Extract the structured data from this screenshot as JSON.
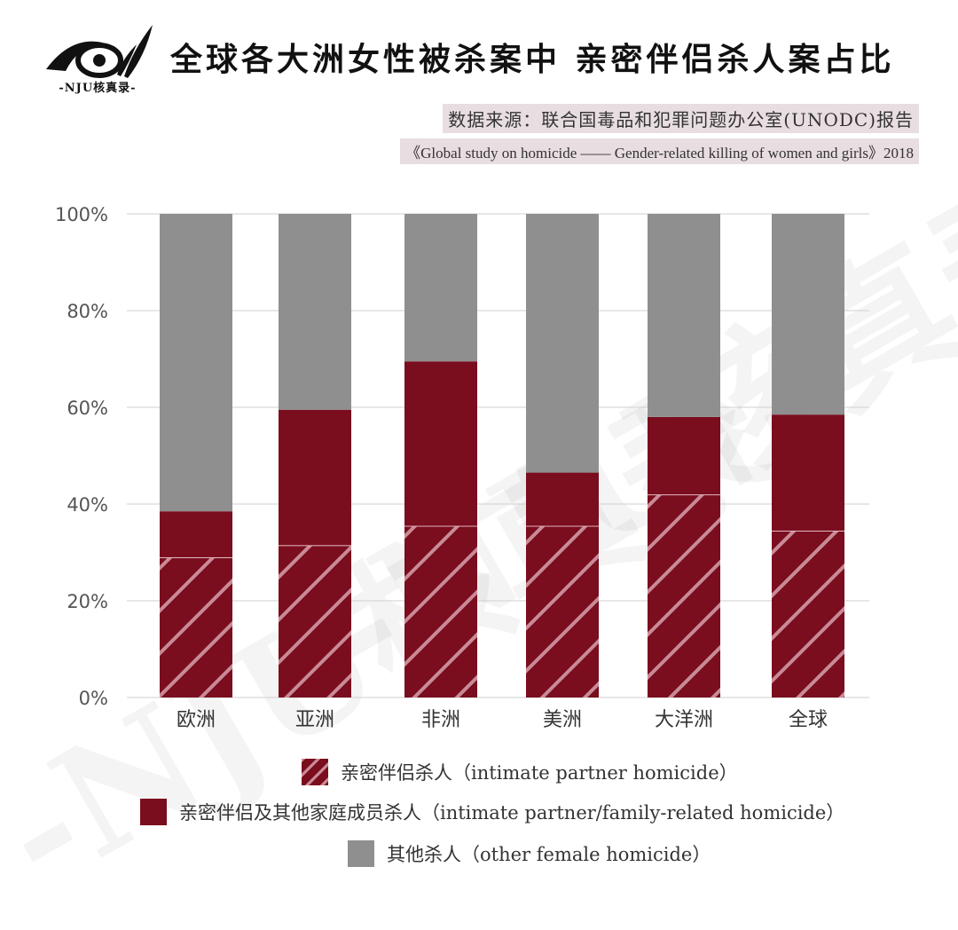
{
  "header": {
    "logo_text": "NJU核真录",
    "logo_caption": "-NJU核真录-",
    "title": "全球各大洲女性被杀案中  亲密伴侣杀人案占比"
  },
  "source": {
    "line1": "数据来源：联合国毒品和犯罪问题办公室(UNODC)报告",
    "line2": "《Global study on homicide —— Gender-related killing of women and girls》2018"
  },
  "watermark": {
    "text": "-NJU核真录-"
  },
  "colors": {
    "intimate": "#7a0d1e",
    "hatch": "#c98a96",
    "family": "#7a0d1e",
    "other": "#8f8f8f",
    "grid": "#cfcfcf",
    "divider": "#e2b6bd"
  },
  "chart_data": {
    "type": "bar",
    "stacked": true,
    "categories": [
      "欧洲",
      "亚洲",
      "非洲",
      "美洲",
      "大洋洲",
      "全球"
    ],
    "series": [
      {
        "name": "亲密伴侣杀人（intimate partner homicide）",
        "values": [
          29,
          31.5,
          35.5,
          35.5,
          42,
          34.5
        ]
      },
      {
        "name": "亲密伴侣及其他家庭成员杀人（intimate partner/family-related homicide）",
        "values": [
          9.5,
          28,
          34,
          11,
          16,
          24
        ]
      },
      {
        "name": "其他杀人（other female homicide）",
        "values": [
          61.5,
          40.5,
          30.5,
          53.5,
          42,
          41.5
        ]
      }
    ],
    "ylim": [
      0,
      100
    ],
    "yticks": [
      "0%",
      "20%",
      "40%",
      "60%",
      "80%",
      "100%"
    ],
    "ytick_values": [
      0,
      20,
      40,
      60,
      80,
      100
    ],
    "grid": true,
    "legend": "bottom"
  }
}
